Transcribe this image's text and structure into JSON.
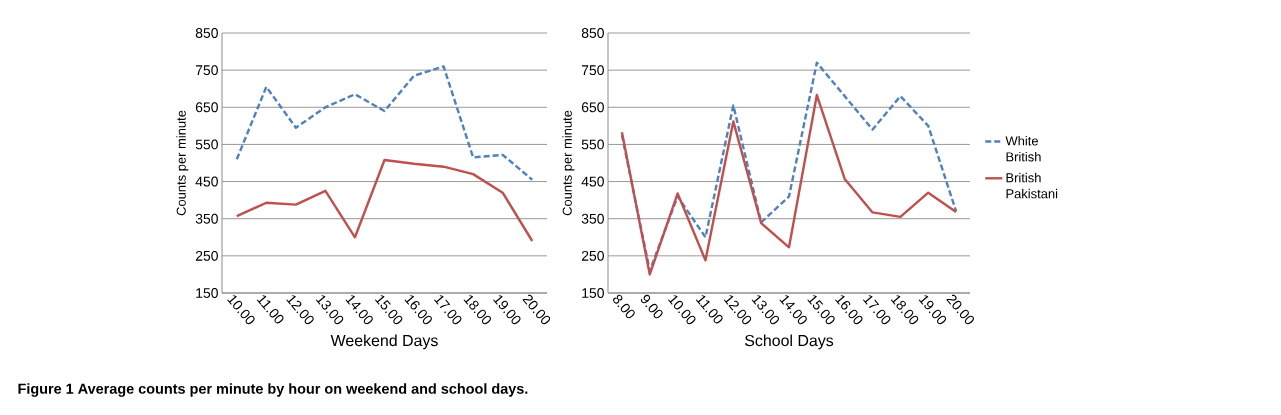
{
  "chart_data": [
    {
      "type": "line",
      "xlabel": "Weekend Days",
      "ylabel": "Counts per minute",
      "categories": [
        "10.00",
        "11.00",
        "12.00",
        "13.00",
        "14.00",
        "15.00",
        "16.00",
        "17.00",
        "18.00",
        "19.00",
        "20.00"
      ],
      "series": [
        {
          "color": "#4f81bd",
          "line_style": "dashed",
          "values": [
            510,
            705,
            595,
            650,
            685,
            640,
            735,
            760,
            515,
            522,
            455
          ]
        },
        {
          "color": "#c0504d",
          "line_style": "solid",
          "values": [
            357,
            393,
            388,
            425,
            300,
            508,
            498,
            490,
            470,
            420,
            290
          ]
        }
      ],
      "ylim": [
        150,
        850
      ],
      "yticks": [
        150,
        250,
        350,
        450,
        550,
        650,
        750,
        850
      ],
      "grid": "y",
      "marker": "none",
      "annotations": [
        "Figure 1 Average counts per minute by hour on weekend and school days."
      ]
    },
    {
      "type": "line",
      "xlabel": "School Days",
      "ylabel": "Counts per minute",
      "categories": [
        "8.00",
        "9.00",
        "10.00",
        "11.00",
        "12.00",
        "13.00",
        "14.00",
        "15.00",
        "16.00",
        "17.00",
        "18.00",
        "19.00",
        "20.00"
      ],
      "series": [
        {
          "name": "White British",
          "color": "#4f81bd",
          "line_style": "dashed",
          "values": [
            575,
            210,
            410,
            300,
            655,
            340,
            410,
            770,
            680,
            590,
            680,
            600,
            370
          ]
        },
        {
          "name": "British Pakistani",
          "color": "#c0504d",
          "line_style": "solid",
          "values": [
            583,
            200,
            418,
            238,
            612,
            338,
            273,
            683,
            457,
            367,
            355,
            420,
            368
          ]
        }
      ],
      "ylim": [
        150,
        850
      ],
      "yticks": [
        150,
        250,
        350,
        450,
        550,
        650,
        750,
        850
      ],
      "grid": "y",
      "marker": "none",
      "legend": "right"
    }
  ]
}
